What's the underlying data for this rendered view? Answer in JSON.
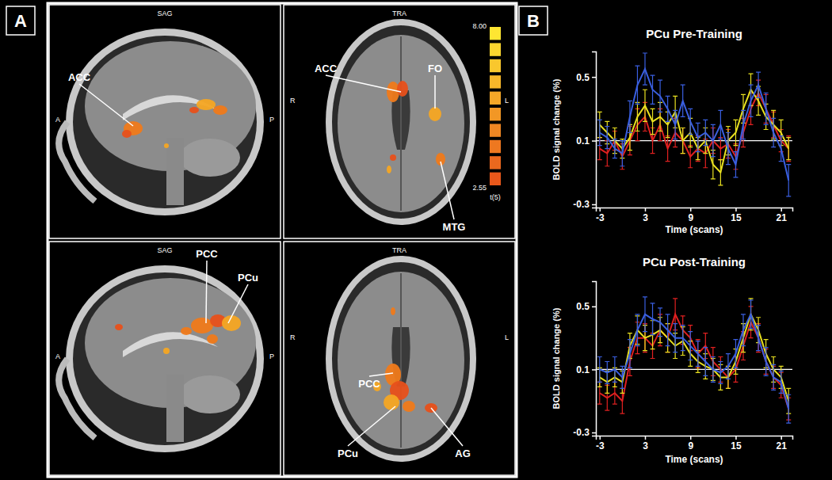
{
  "figure": {
    "panel_labels": [
      "A",
      "B"
    ],
    "views": [
      {
        "view": "SAG",
        "side_start": "A",
        "side_end": "P",
        "regions": [
          "ACC"
        ]
      },
      {
        "view": "TRA",
        "side_start": "R",
        "side_end": "L",
        "regions": [
          "ACC",
          "FO",
          "MTG"
        ]
      },
      {
        "view": "SAG",
        "side_start": "A",
        "side_end": "P",
        "regions": [
          "PCC",
          "PCu"
        ]
      },
      {
        "view": "TRA",
        "side_start": "R",
        "side_end": "L",
        "regions": [
          "PCC",
          "PCu",
          "AG"
        ]
      }
    ],
    "colorbar": {
      "label": "t(5)",
      "range": [
        2.55,
        8
      ],
      "ticks": [
        {
          "value": 8,
          "label": "8.00"
        },
        {
          "value": 2.55,
          "label": "2.55"
        }
      ]
    }
  },
  "chart_data": [
    {
      "type": "line",
      "title": "PCu Pre-Training",
      "x_label": "Time (scans)",
      "y_label": "BOLD signal change (%)",
      "x": [
        -3,
        -2,
        -1,
        0,
        1,
        2,
        3,
        4,
        5,
        6,
        7,
        8,
        9,
        10,
        11,
        12,
        13,
        14,
        15,
        16,
        17,
        18,
        19,
        20,
        21,
        22
      ],
      "xlim": [
        -3.5,
        22.5
      ],
      "xticks": [
        -3,
        3,
        9,
        15,
        21
      ],
      "ylim": [
        -0.32,
        0.66
      ],
      "yticks": [
        -0.3,
        0.1,
        0.5
      ],
      "hline": 0.1,
      "series": [
        {
          "color": "#e02020",
          "values": [
            0.05,
            0.02,
            0.1,
            0.0,
            0.1,
            0.2,
            0.25,
            0.1,
            0.2,
            0.05,
            0.15,
            0.1,
            0.0,
            0.05,
            0.02,
            0.1,
            0.05,
            0.08,
            0.0,
            0.15,
            0.3,
            0.4,
            0.3,
            0.2,
            0.1,
            0.05
          ],
          "errors": [
            0.07,
            0.08,
            0.06,
            0.08,
            0.09,
            0.1,
            0.09,
            0.08,
            0.1,
            0.08,
            0.09,
            0.08,
            0.07,
            0.08,
            0.09,
            0.08,
            0.07,
            0.09,
            0.08,
            0.09,
            0.1,
            0.08,
            0.09,
            0.08,
            0.07,
            0.08
          ]
        },
        {
          "color": "#e8e020",
          "values": [
            0.2,
            0.15,
            0.1,
            0.05,
            0.12,
            0.25,
            0.32,
            0.22,
            0.25,
            0.2,
            0.28,
            0.1,
            0.15,
            0.05,
            0.1,
            -0.05,
            -0.1,
            0.1,
            0.15,
            0.3,
            0.42,
            0.35,
            0.25,
            0.2,
            0.15,
            0.05
          ],
          "errors": [
            0.08,
            0.07,
            0.08,
            0.06,
            0.08,
            0.09,
            0.1,
            0.08,
            0.09,
            0.08,
            0.1,
            0.08,
            0.09,
            0.07,
            0.08,
            0.09,
            0.08,
            0.09,
            0.08,
            0.09,
            0.1,
            0.09,
            0.08,
            0.09,
            0.08,
            0.07
          ]
        },
        {
          "color": "#3a5fe0",
          "values": [
            0.15,
            0.12,
            0.05,
            0.02,
            0.25,
            0.45,
            0.55,
            0.42,
            0.38,
            0.3,
            0.2,
            0.35,
            0.22,
            0.12,
            0.15,
            0.1,
            0.2,
            0.05,
            -0.05,
            0.2,
            0.35,
            0.45,
            0.3,
            0.15,
            0.05,
            -0.15
          ],
          "errors": [
            0.08,
            0.07,
            0.06,
            0.08,
            0.1,
            0.12,
            0.1,
            0.09,
            0.1,
            0.08,
            0.09,
            0.1,
            0.08,
            0.09,
            0.08,
            0.1,
            0.09,
            0.1,
            0.08,
            0.09,
            0.1,
            0.08,
            0.1,
            0.09,
            0.08,
            0.1
          ]
        }
      ]
    },
    {
      "type": "line",
      "title": "PCu Post-Training",
      "x_label": "Time (scans)",
      "y_label": "BOLD signal change (%)",
      "x": [
        -3,
        -2,
        -1,
        0,
        1,
        2,
        3,
        4,
        5,
        6,
        7,
        8,
        9,
        10,
        11,
        12,
        13,
        14,
        15,
        16,
        17,
        18,
        19,
        20,
        21,
        22
      ],
      "xlim": [
        -3.5,
        22.5
      ],
      "xticks": [
        -3,
        3,
        9,
        15,
        21
      ],
      "ylim": [
        -0.32,
        0.66
      ],
      "yticks": [
        -0.3,
        0.1,
        0.5
      ],
      "hline": 0.1,
      "series": [
        {
          "color": "#e02020",
          "values": [
            -0.05,
            -0.08,
            -0.05,
            -0.1,
            0.15,
            0.3,
            0.3,
            0.25,
            0.35,
            0.3,
            0.45,
            0.35,
            0.3,
            0.2,
            0.25,
            0.15,
            0.1,
            0.05,
            0.1,
            0.25,
            0.4,
            0.3,
            0.15,
            0.05,
            0.0,
            -0.15
          ],
          "errors": [
            0.07,
            0.08,
            0.07,
            0.08,
            0.09,
            0.1,
            0.09,
            0.08,
            0.1,
            0.09,
            0.1,
            0.09,
            0.08,
            0.09,
            0.08,
            0.09,
            0.08,
            0.07,
            0.08,
            0.09,
            0.1,
            0.09,
            0.08,
            0.07,
            0.08,
            0.07
          ]
        },
        {
          "color": "#e8e020",
          "values": [
            0.05,
            0.02,
            0.05,
            0.02,
            0.25,
            0.35,
            0.3,
            0.32,
            0.35,
            0.3,
            0.25,
            0.28,
            0.2,
            0.15,
            0.12,
            0.1,
            0.05,
            0.05,
            0.15,
            0.3,
            0.45,
            0.35,
            0.2,
            0.1,
            0.05,
            -0.1
          ],
          "errors": [
            0.06,
            0.07,
            0.06,
            0.07,
            0.08,
            0.09,
            0.08,
            0.09,
            0.08,
            0.09,
            0.08,
            0.09,
            0.08,
            0.07,
            0.08,
            0.07,
            0.08,
            0.07,
            0.08,
            0.09,
            0.1,
            0.08,
            0.09,
            0.08,
            0.07,
            0.08
          ]
        },
        {
          "color": "#3a5fe0",
          "values": [
            0.1,
            0.08,
            0.1,
            0.05,
            0.2,
            0.35,
            0.45,
            0.42,
            0.4,
            0.35,
            0.3,
            0.3,
            0.25,
            0.2,
            0.15,
            0.1,
            0.08,
            0.12,
            0.2,
            0.35,
            0.45,
            0.3,
            0.15,
            0.05,
            0.02,
            -0.15
          ],
          "errors": [
            0.08,
            0.07,
            0.08,
            0.07,
            0.09,
            0.1,
            0.11,
            0.1,
            0.09,
            0.1,
            0.09,
            0.08,
            0.09,
            0.08,
            0.09,
            0.08,
            0.07,
            0.08,
            0.09,
            0.1,
            0.09,
            0.08,
            0.09,
            0.08,
            0.07,
            0.09
          ]
        }
      ]
    }
  ]
}
